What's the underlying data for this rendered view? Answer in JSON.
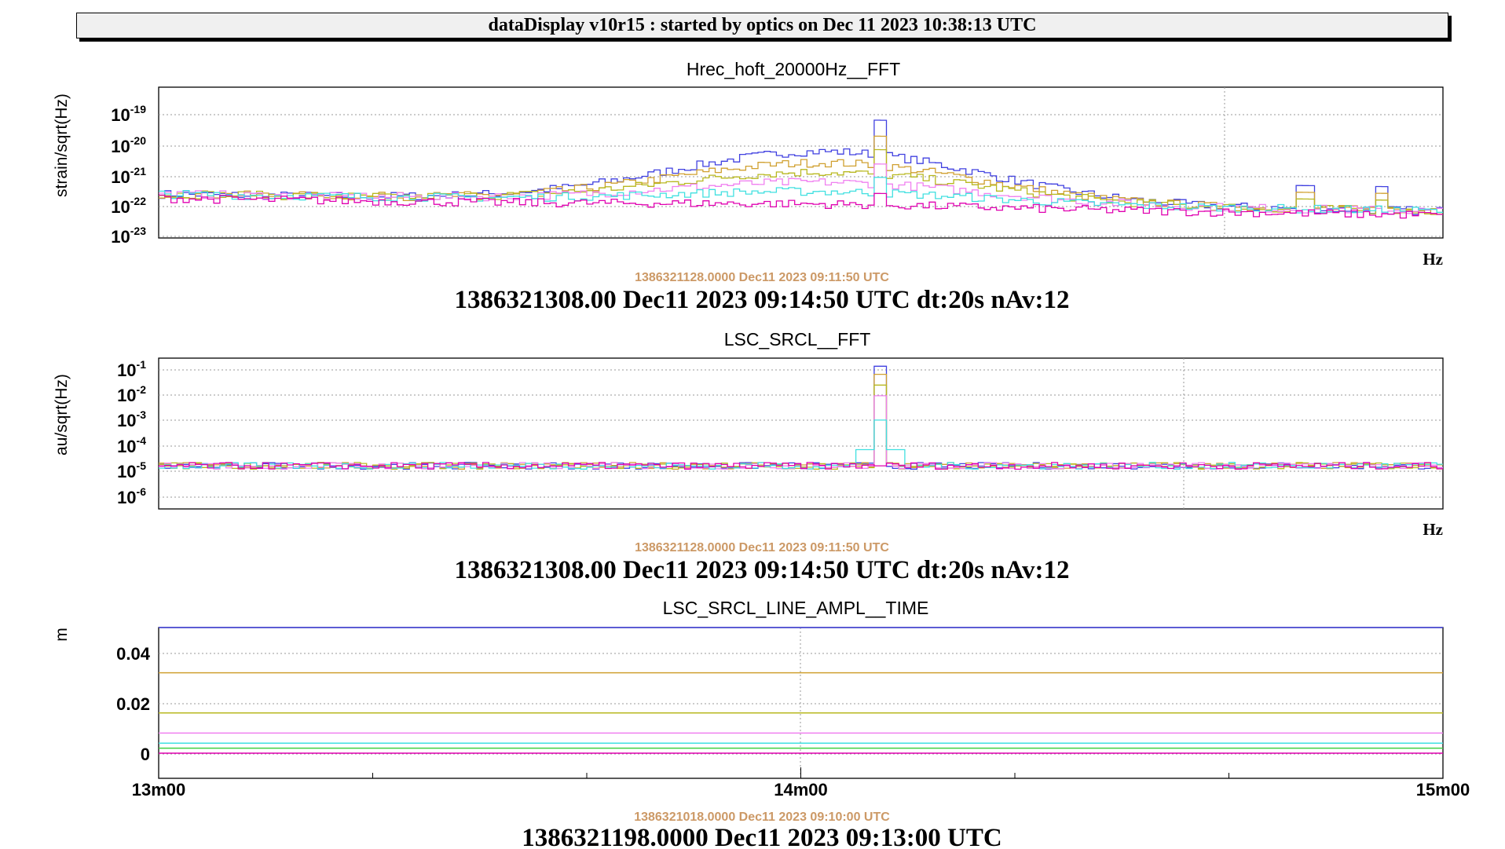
{
  "banner": "dataDisplay v10r15 : started by optics on Dec 11 2023 10:38:13 UTC",
  "colors": [
    "#4040e0",
    "#d0a030",
    "#b8b820",
    "#f080f0",
    "#40e0e0",
    "#40d040",
    "#e05050",
    "#e000b0",
    "#7030a0"
  ],
  "panels": [
    {
      "title": "Hrec_hoft_20000Hz__FFT",
      "ylabel": "strain/sqrt(Hz)",
      "xunit": "Hz",
      "ref_time": "1386321128.0000 Dec11 2023 09:11:50 UTC",
      "stamp": "1386321308.00 Dec11 2023 09:14:50 UTC dt:20s nAv:12",
      "yticks": [
        {
          "base": "10",
          "exp": "-19"
        },
        {
          "base": "10",
          "exp": "-20"
        },
        {
          "base": "10",
          "exp": "-21"
        },
        {
          "base": "10",
          "exp": "-22"
        },
        {
          "base": "10",
          "exp": "-23"
        }
      ]
    },
    {
      "title": "LSC_SRCL__FFT",
      "ylabel": "au/sqrt(Hz)",
      "xunit": "Hz",
      "ref_time": "1386321128.0000 Dec11 2023 09:11:50 UTC",
      "stamp": "1386321308.00 Dec11 2023 09:14:50 UTC dt:20s nAv:12",
      "yticks": [
        {
          "base": "10",
          "exp": "-1"
        },
        {
          "base": "10",
          "exp": "-2"
        },
        {
          "base": "10",
          "exp": "-3"
        },
        {
          "base": "10",
          "exp": "-4"
        },
        {
          "base": "10",
          "exp": "-5"
        },
        {
          "base": "10",
          "exp": "-6"
        }
      ]
    },
    {
      "title": "LSC_SRCL_LINE_AMPL__TIME",
      "ylabel": "m",
      "ref_time": "1386321018.0000 Dec11 2023 09:10:00 UTC",
      "stamp": "1386321198.0000 Dec11 2023 09:13:00 UTC",
      "yticks": [
        "0.04",
        "0.02",
        "0"
      ],
      "xticks": [
        "13m00",
        "14m00",
        "15m00"
      ]
    }
  ],
  "chart_data": [
    {
      "type": "line",
      "title": "Hrec_hoft_20000Hz__FFT",
      "ylabel": "strain/sqrt(Hz)",
      "xlabel": "Hz",
      "yscale": "log",
      "ylim": [
        1e-23,
        3e-19
      ],
      "grid": true,
      "series": [
        {
          "color": "#4040e0",
          "peak": 3e-20,
          "base": 2e-22
        },
        {
          "color": "#d0a030",
          "peak": 1e-20,
          "base": 2e-22
        },
        {
          "color": "#b8b820",
          "peak": 4e-21,
          "base": 2e-22
        },
        {
          "color": "#f080f0",
          "peak": 1.5e-21,
          "base": 2e-22
        },
        {
          "color": "#40e0e0",
          "peak": 6e-22,
          "base": 2e-22
        },
        {
          "color": "#e000b0",
          "peak": 2e-22,
          "base": 1.5e-22
        }
      ]
    },
    {
      "type": "line",
      "title": "LSC_SRCL__FFT",
      "ylabel": "au/sqrt(Hz)",
      "xlabel": "Hz",
      "yscale": "log",
      "ylim": [
        5e-07,
        0.2
      ],
      "grid": true,
      "series": [
        {
          "color": "#4040e0",
          "peak": 0.1,
          "base": 2e-05
        },
        {
          "color": "#d0a030",
          "peak": 0.05,
          "base": 2e-05
        },
        {
          "color": "#b8b820",
          "peak": 0.02,
          "base": 2e-05
        },
        {
          "color": "#f080f0",
          "peak": 0.008,
          "base": 2e-05
        },
        {
          "color": "#40e0e0",
          "peak": 0.001,
          "base": 2e-05
        },
        {
          "color": "#e000b0",
          "peak": 2e-05,
          "base": 2e-05
        }
      ]
    },
    {
      "type": "line",
      "title": "LSC_SRCL_LINE_AMPL__TIME",
      "ylabel": "m",
      "ylim": [
        -0.01,
        0.05
      ],
      "x": [
        "13m00",
        "14m00",
        "15m00"
      ],
      "grid": true,
      "series": [
        {
          "color": "#4040e0",
          "values": [
            0.05,
            0.05,
            0.05
          ]
        },
        {
          "color": "#d0a030",
          "values": [
            0.032,
            0.032,
            0.032
          ]
        },
        {
          "color": "#b8b820",
          "values": [
            0.016,
            0.016,
            0.016
          ]
        },
        {
          "color": "#f080f0",
          "values": [
            0.008,
            0.008,
            0.008
          ]
        },
        {
          "color": "#40e0e0",
          "values": [
            0.004,
            0.004,
            0.004
          ]
        },
        {
          "color": "#40d040",
          "values": [
            0.002,
            0.002,
            0.002
          ]
        },
        {
          "color": "#e000b0",
          "values": [
            0.0,
            0.0,
            0.0
          ]
        }
      ]
    }
  ]
}
